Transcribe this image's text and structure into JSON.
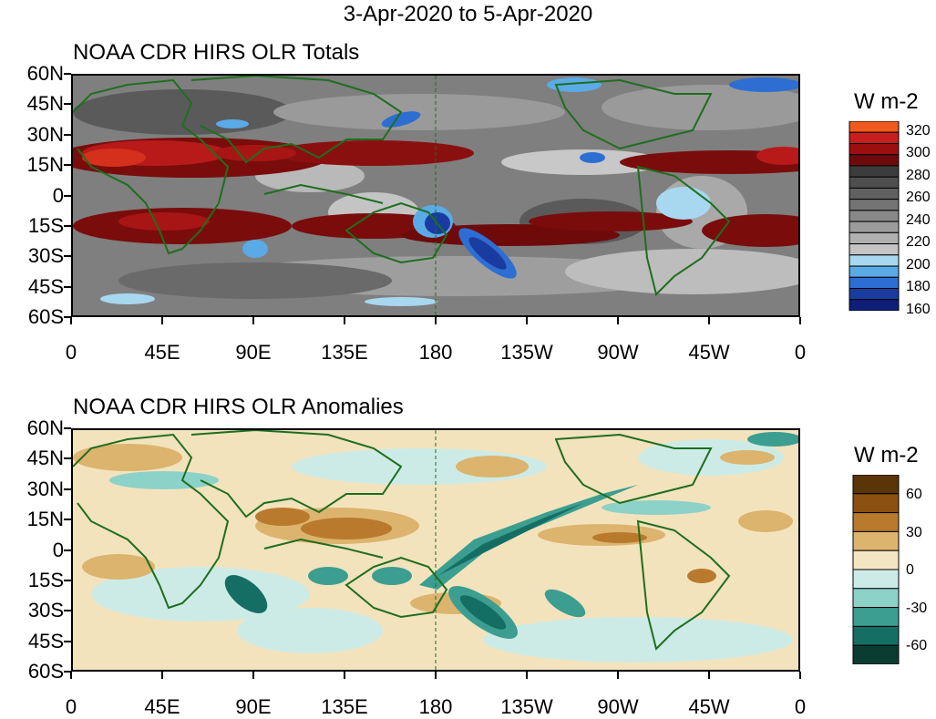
{
  "figure": {
    "title": "3-Apr-2020 to 5-Apr-2020"
  },
  "panels": [
    {
      "title": "NOAA CDR HIRS OLR Totals",
      "colorbar": {
        "units": "W m-2",
        "tick_labels": [
          "320",
          "300",
          "280",
          "260",
          "240",
          "220",
          "200",
          "180",
          "160"
        ],
        "colors": [
          "#f05a1e",
          "#c81e1e",
          "#9b0f0f",
          "#6e0a0a",
          "#3c3c3c",
          "#4e4e4e",
          "#606060",
          "#747474",
          "#888888",
          "#9c9c9c",
          "#b0b0b0",
          "#c4c4c4",
          "#a8d8f0",
          "#5aaae6",
          "#2d6ed2",
          "#1a3ca0",
          "#0f1e78"
        ]
      }
    },
    {
      "title": "NOAA CDR HIRS OLR Anomalies",
      "colorbar": {
        "units": "W m-2",
        "tick_labels": [
          "60",
          "30",
          "0",
          "-30",
          "-60"
        ],
        "colors": [
          "#5a3508",
          "#8c5010",
          "#b97a2e",
          "#dcb46e",
          "#f5e6c3",
          "#cdebe6",
          "#8cd2c8",
          "#3c9e91",
          "#156e64",
          "#0a3c32"
        ]
      }
    }
  ],
  "axes": {
    "lat_labels": [
      "60N",
      "45N",
      "30N",
      "15N",
      "0",
      "15S",
      "30S",
      "45S",
      "60S"
    ],
    "lon_labels": [
      "0",
      "45E",
      "90E",
      "135E",
      "180",
      "135W",
      "90W",
      "45W",
      "0"
    ]
  }
}
